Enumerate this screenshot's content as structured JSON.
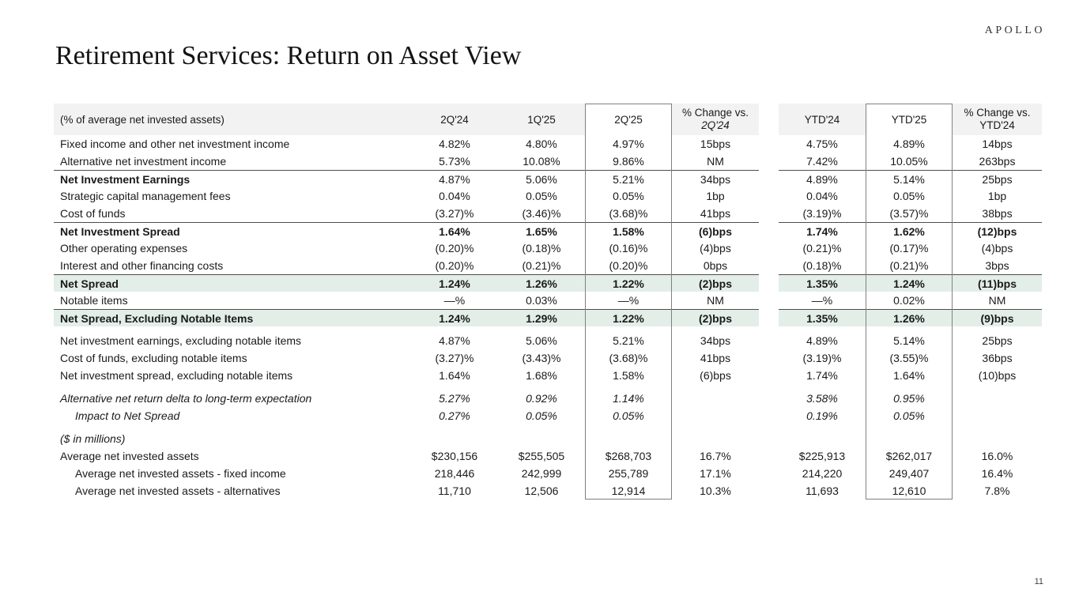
{
  "brand": {
    "logo_text": "APOLLO"
  },
  "page": {
    "title": "Retirement Services: Return on Asset View",
    "page_number": "11"
  },
  "colors": {
    "highlight_row_bg": "#e3eee8",
    "header_bg": "#f2f2f2",
    "rule": "#4d4d4d",
    "box_border": "#808080"
  },
  "table": {
    "header": {
      "label": "(% of average net invested assets)",
      "columns": [
        {
          "label": "2Q'24"
        },
        {
          "label": "1Q'25"
        },
        {
          "label": "2Q'25",
          "boxed": true
        },
        {
          "label": "% Change vs.",
          "line2": "2Q'24",
          "line2_italic": true
        },
        {
          "label": "YTD'24"
        },
        {
          "label": "YTD'25",
          "boxed": true
        },
        {
          "label": "% Change vs.",
          "line2": "YTD'24",
          "line2_italic": false
        }
      ]
    },
    "rows": [
      {
        "label": "Fixed income and other net investment income",
        "values": [
          "4.82%",
          "4.80%",
          "4.97%",
          "15bps",
          "4.75%",
          "4.89%",
          "14bps"
        ]
      },
      {
        "label": "Alternative net investment income",
        "values": [
          "5.73%",
          "10.08%",
          "9.86%",
          "NM",
          "7.42%",
          "10.05%",
          "263bps"
        ]
      },
      {
        "label": "Net Investment Earnings",
        "bold": "label",
        "top_border": true,
        "values": [
          "4.87%",
          "5.06%",
          "5.21%",
          "34bps",
          "4.89%",
          "5.14%",
          "25bps"
        ]
      },
      {
        "label": "Strategic capital management fees",
        "values": [
          "0.04%",
          "0.05%",
          "0.05%",
          "1bp",
          "0.04%",
          "0.05%",
          "1bp"
        ]
      },
      {
        "label": "Cost of funds",
        "values": [
          "(3.27)%",
          "(3.46)%",
          "(3.68)%",
          "41bps",
          "(3.19)%",
          "(3.57)%",
          "38bps"
        ]
      },
      {
        "label": "Net Investment Spread",
        "bold": "all",
        "top_border": true,
        "values": [
          "1.64%",
          "1.65%",
          "1.58%",
          "(6)bps",
          "1.74%",
          "1.62%",
          "(12)bps"
        ]
      },
      {
        "label": "Other operating expenses",
        "values": [
          "(0.20)%",
          "(0.18)%",
          "(0.16)%",
          "(4)bps",
          "(0.21)%",
          "(0.17)%",
          "(4)bps"
        ]
      },
      {
        "label": "Interest and other financing costs",
        "values": [
          "(0.20)%",
          "(0.21)%",
          "(0.20)%",
          "0bps",
          "(0.18)%",
          "(0.21)%",
          "3bps"
        ]
      },
      {
        "label": "Net Spread",
        "bold": "all",
        "top_border": true,
        "highlight": true,
        "values": [
          "1.24%",
          "1.26%",
          "1.22%",
          "(2)bps",
          "1.35%",
          "1.24%",
          "(11)bps"
        ]
      },
      {
        "label": "Notable items",
        "values": [
          "—%",
          "0.03%",
          "—%",
          "NM",
          "—%",
          "0.02%",
          "NM"
        ]
      },
      {
        "label": "Net Spread, Excluding Notable Items",
        "bold": "all",
        "top_border": true,
        "highlight": true,
        "values": [
          "1.24%",
          "1.29%",
          "1.22%",
          "(2)bps",
          "1.35%",
          "1.26%",
          "(9)bps"
        ]
      },
      {
        "label": "Net investment earnings, excluding notable items",
        "spacer_before": true,
        "values": [
          "4.87%",
          "5.06%",
          "5.21%",
          "34bps",
          "4.89%",
          "5.14%",
          "25bps"
        ]
      },
      {
        "label": "Cost of funds, excluding notable items",
        "values": [
          "(3.27)%",
          "(3.43)%",
          "(3.68)%",
          "41bps",
          "(3.19)%",
          "(3.55)%",
          "36bps"
        ]
      },
      {
        "label": "Net investment spread, excluding notable items",
        "values": [
          "1.64%",
          "1.68%",
          "1.58%",
          "(6)bps",
          "1.74%",
          "1.64%",
          "(10)bps"
        ]
      },
      {
        "label": "Alternative net return delta to long-term expectation",
        "italic": true,
        "spacer_before": true,
        "values": [
          "5.27%",
          "0.92%",
          "1.14%",
          "",
          "3.58%",
          "0.95%",
          ""
        ]
      },
      {
        "label": "Impact to Net Spread",
        "italic": true,
        "indent": 1,
        "values": [
          "0.27%",
          "0.05%",
          "0.05%",
          "",
          "0.19%",
          "0.05%",
          ""
        ]
      },
      {
        "label": "($ in millions)",
        "italic": true,
        "spacer_before": true,
        "values": [
          "",
          "",
          "",
          "",
          "",
          "",
          ""
        ]
      },
      {
        "label": "Average net invested assets",
        "values": [
          "$230,156",
          "$255,505",
          "$268,703",
          "16.7%",
          "$225,913",
          "$262,017",
          "16.0%"
        ]
      },
      {
        "label": "Average net invested assets - fixed income",
        "indent": 1,
        "values": [
          "218,446",
          "242,999",
          "255,789",
          "17.1%",
          "214,220",
          "249,407",
          "16.4%"
        ]
      },
      {
        "label": "Average net invested assets - alternatives",
        "indent": 1,
        "values": [
          "11,710",
          "12,506",
          "12,914",
          "10.3%",
          "11,693",
          "12,610",
          "7.8%"
        ]
      }
    ]
  }
}
